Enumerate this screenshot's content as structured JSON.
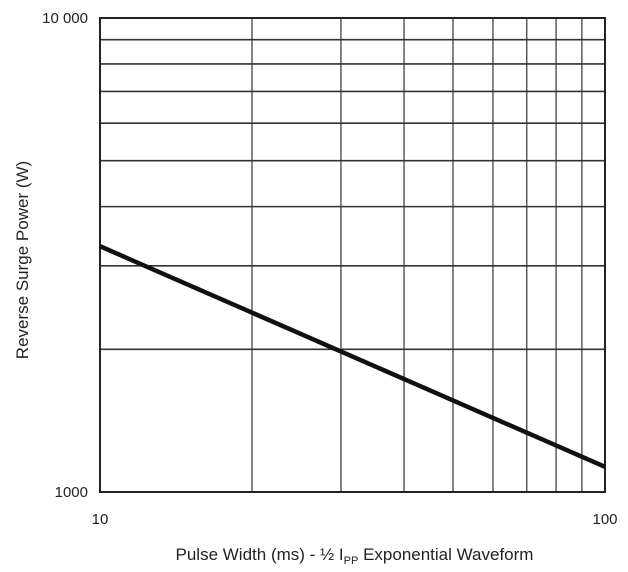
{
  "chart_data": {
    "type": "line",
    "title": "",
    "xlabel": "Pulse Width (ms) - ½ I",
    "xlabel_subscript": "PP",
    "xlabel_suffix": " Exponential Waveform",
    "ylabel": "Reverse Surge Power (W)",
    "x_scale": "log",
    "y_scale": "log",
    "xlim": [
      10,
      100
    ],
    "ylim": [
      1000,
      10000
    ],
    "x_ticks": [
      {
        "value": 10,
        "label": "10"
      },
      {
        "value": 100,
        "label": "100"
      }
    ],
    "y_ticks": [
      {
        "value": 1000,
        "label": "1000"
      },
      {
        "value": 10000,
        "label": "10 000"
      }
    ],
    "grid": true,
    "series": [
      {
        "x": [
          10,
          100
        ],
        "y": [
          3300,
          1130
        ]
      }
    ]
  }
}
